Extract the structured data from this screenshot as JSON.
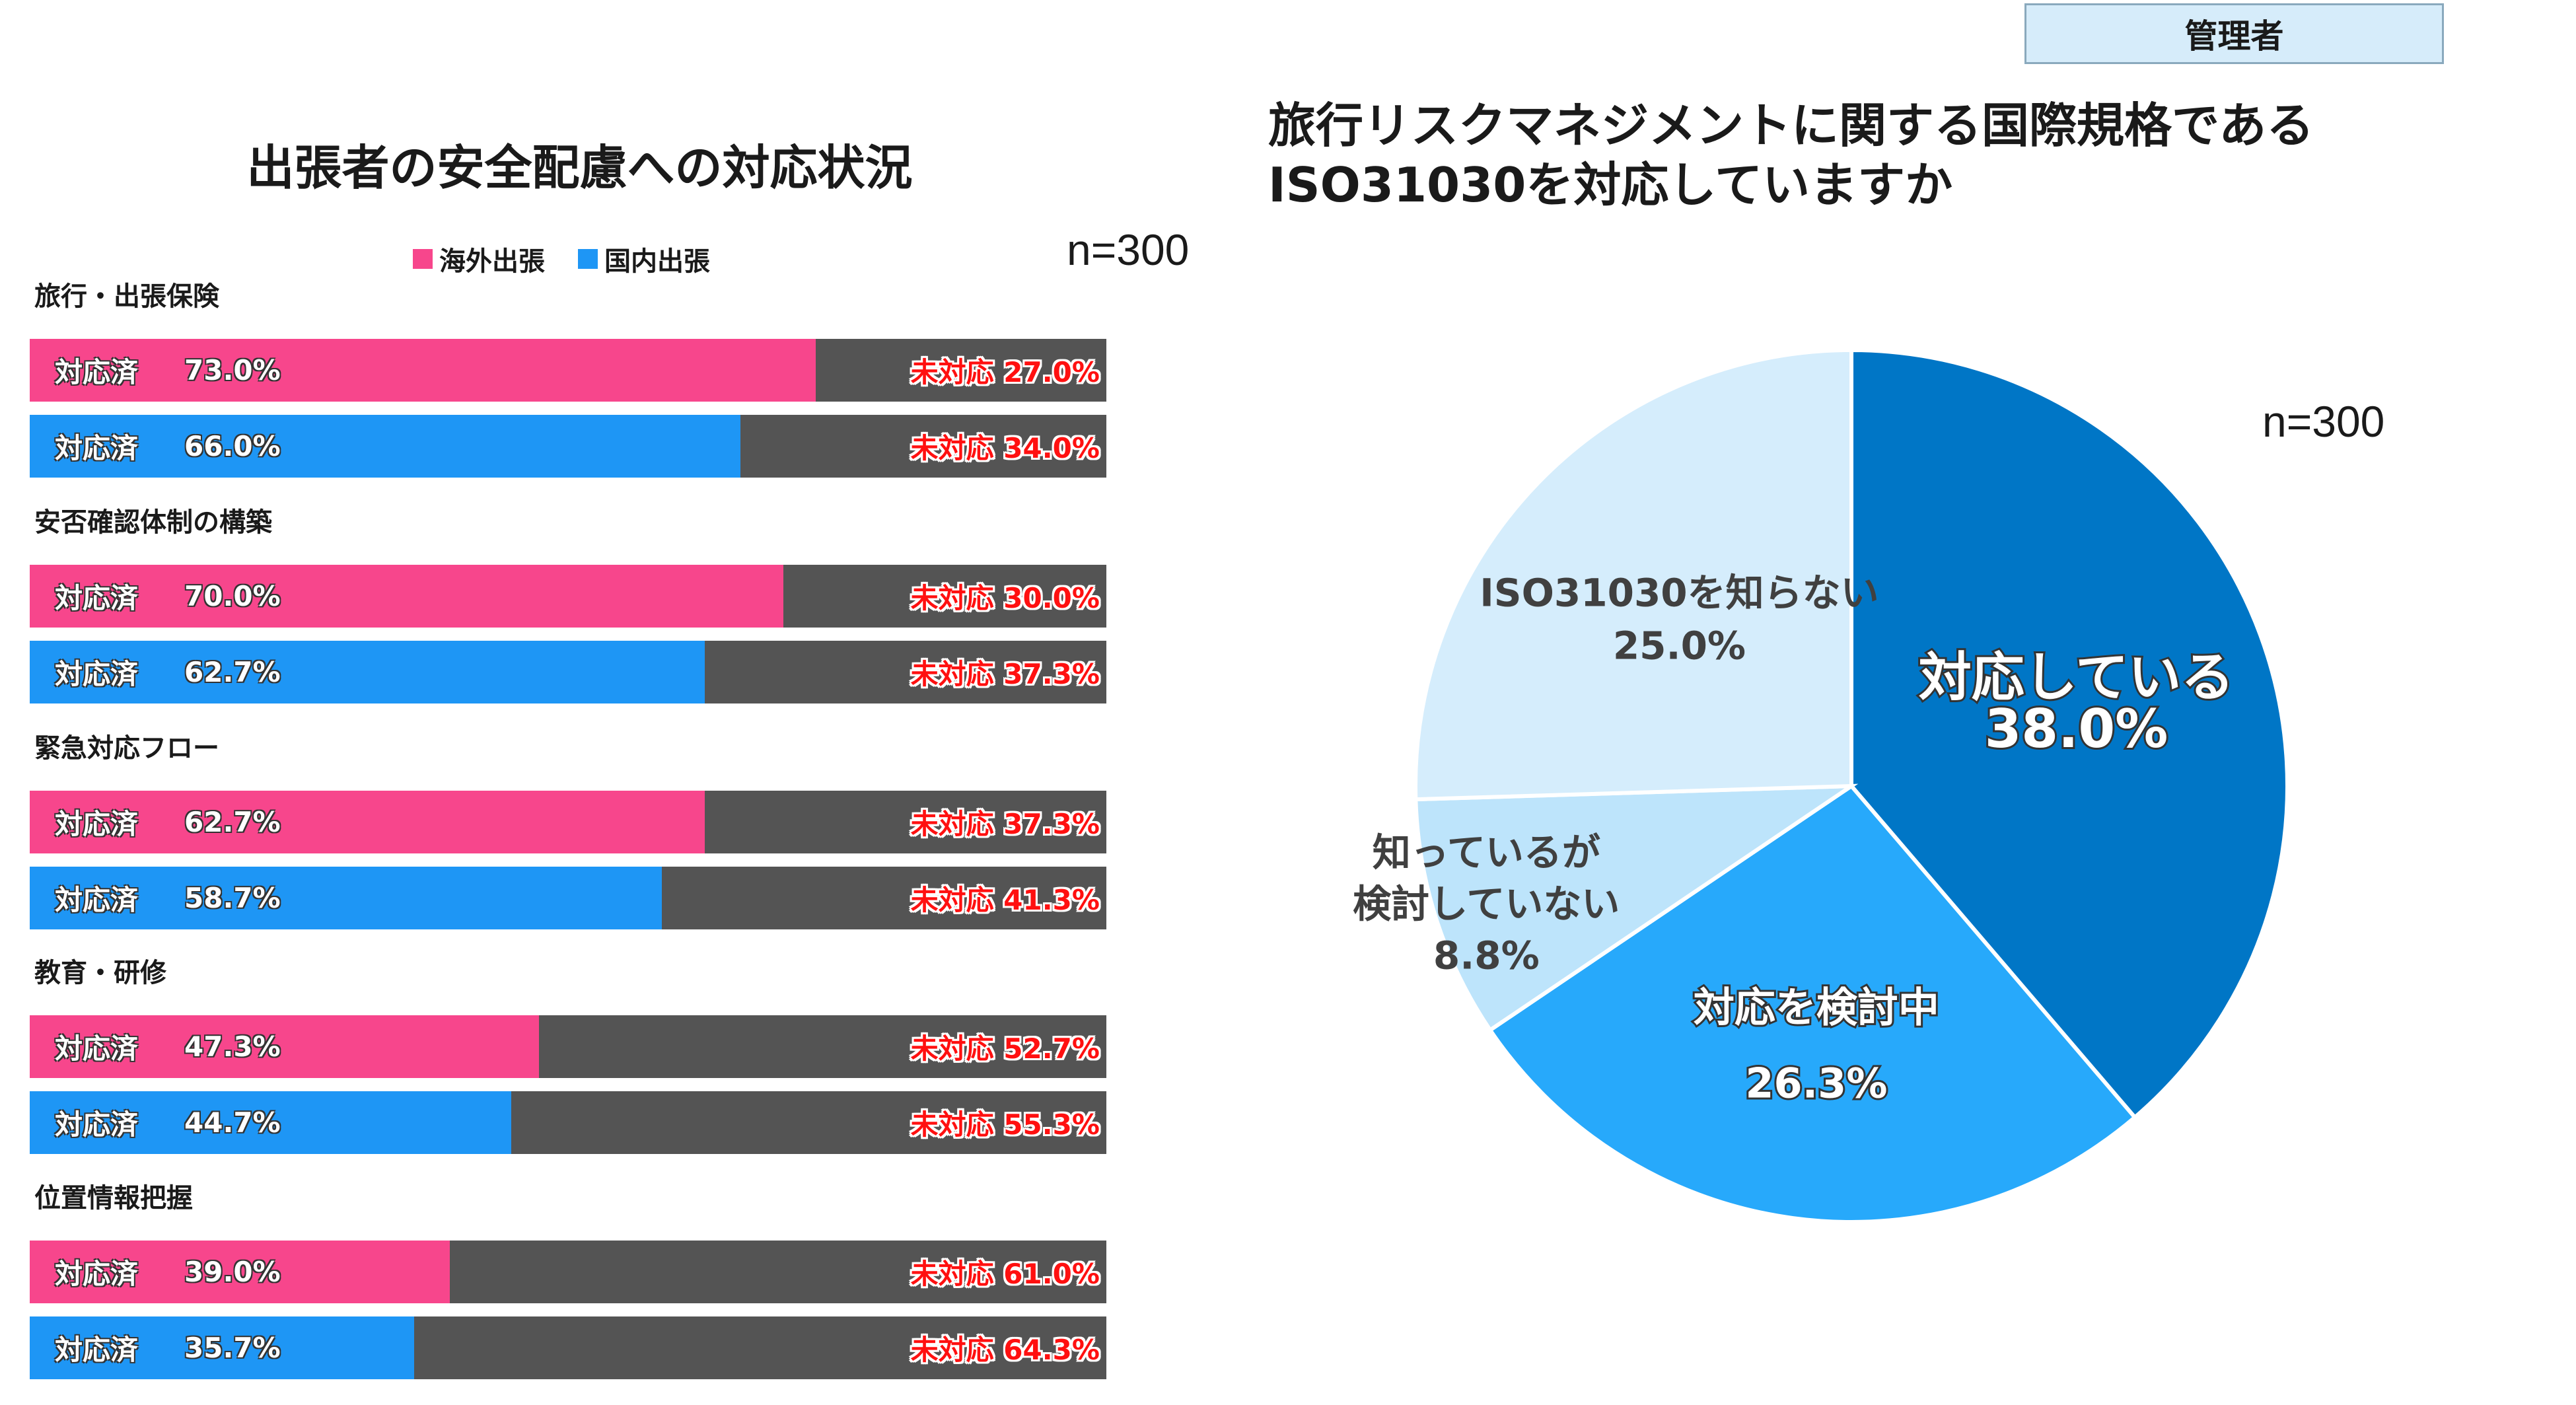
{
  "header": {
    "badge": "管理者"
  },
  "left_panel": {
    "title": "出張者の安全配慮への対応状況",
    "n_label": "n=300",
    "legend": [
      {
        "label": "海外出張",
        "color": "#f7468c"
      },
      {
        "label": "国内出張",
        "color": "#1e96f5"
      }
    ]
  },
  "right_panel": {
    "title_line1": "旅行リスクマネジメントに関する国際規格である",
    "title_line2": "ISO31030を対応していますか",
    "n_label": "n=300"
  },
  "chart_data": [
    {
      "type": "bar",
      "orientation": "horizontal",
      "stacked": true,
      "title": "出張者の安全配慮への対応状況",
      "note": "n=300",
      "done_label": "対応済",
      "undone_label": "未対応",
      "undone_color": "#545454",
      "categories": [
        "旅行・出張保険",
        "安否確認体制の構築",
        "緊急対応フロー",
        "教育・研修",
        "位置情報把握"
      ],
      "series": [
        {
          "name": "海外出張",
          "color": "#f7468c",
          "done": [
            73.0,
            70.0,
            62.7,
            47.3,
            39.0
          ],
          "done_text": [
            "73.0%",
            "70.0%",
            "62.7%",
            "47.3%",
            "39.0%"
          ],
          "undone_text": [
            "27.0%",
            "30.0%",
            "37.3%",
            "52.7%",
            "61.0%"
          ]
        },
        {
          "name": "国内出張",
          "color": "#1e96f5",
          "done": [
            66.0,
            62.7,
            58.7,
            44.7,
            35.7
          ],
          "done_text": [
            "66.0%",
            "62.7%",
            "58.7%",
            "44.7%",
            "35.7%"
          ],
          "undone_text": [
            "34.0%",
            "37.3%",
            "41.3%",
            "55.3%",
            "64.3%"
          ]
        }
      ],
      "xlim": [
        0,
        100
      ]
    },
    {
      "type": "pie",
      "title": "旅行リスクマネジメントに関する国際規格であるISO31030を対応していますか",
      "note": "n=300",
      "start": "12 o'clock",
      "direction": "clockwise",
      "slices": [
        {
          "label": "対応している",
          "value": 38.0,
          "text": "38.0%",
          "color": "#0076c6",
          "label_color": "#ffffff"
        },
        {
          "label": "対応を検討中",
          "value": 26.3,
          "text": "26.3%",
          "color": "#27a9fb",
          "label_color": "#ffffff"
        },
        {
          "label_lines": [
            "知っているが",
            "検討していない"
          ],
          "value": 8.8,
          "text": "8.8%",
          "color": "#bde4fb",
          "label_color": "#404040"
        },
        {
          "label": "ISO31030を知らない",
          "value": 25.0,
          "text": "25.0%",
          "color": "#d5edfc",
          "label_color": "#404040"
        }
      ]
    }
  ]
}
